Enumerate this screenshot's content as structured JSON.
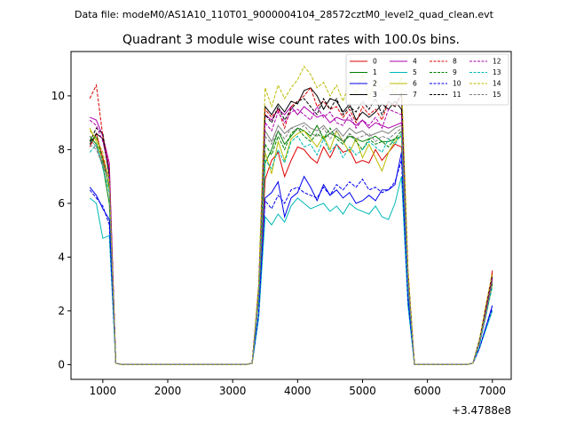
{
  "header": {
    "supertitle": "Data file: modeM0/AS1A10_110T01_9000004104_28572cztM0_level2_quad_clean.evt",
    "title": "Quadrant 3 module wise count rates with 100.0s bins.",
    "offset_label": "+3.4788e8"
  },
  "chart_data": {
    "type": "line",
    "title": "Quadrant 3 module wise count rates with 100.0s bins.",
    "xlabel": "",
    "ylabel": "",
    "x_offset": 347880000,
    "xlim": [
      510,
      7290
    ],
    "ylim": [
      -0.55,
      11.65
    ],
    "xticks": [
      1000,
      2000,
      3000,
      4000,
      5000,
      6000,
      7000
    ],
    "yticks": [
      0,
      2,
      4,
      6,
      8,
      10
    ],
    "grid": false,
    "legend_position": "top-right",
    "x": [
      800,
      900,
      1000,
      1100,
      1200,
      1300,
      1400,
      1500,
      1600,
      1700,
      1800,
      1900,
      2000,
      2100,
      2200,
      2300,
      2400,
      2500,
      2600,
      2700,
      2800,
      2900,
      3000,
      3100,
      3200,
      3300,
      3400,
      3500,
      3600,
      3700,
      3800,
      3900,
      4000,
      4100,
      4200,
      4300,
      4400,
      4500,
      4600,
      4700,
      4800,
      4900,
      5000,
      5100,
      5200,
      5300,
      5400,
      5500,
      5600,
      5700,
      5800,
      5900,
      6000,
      6100,
      6200,
      6300,
      6400,
      6500,
      6600,
      6700,
      6800,
      6900,
      7000
    ],
    "series": [
      {
        "name": "0",
        "color": "#dd0000",
        "dash": "solid",
        "values": [
          8.1,
          8.6,
          7.7,
          6.9,
          0.05,
          0,
          0,
          0,
          0,
          0,
          0,
          0,
          0,
          0,
          0,
          0,
          0,
          0,
          0,
          0,
          0,
          0,
          0,
          0,
          0,
          0.05,
          2.4,
          6.9,
          7.6,
          7.9,
          7.0,
          7.6,
          8.1,
          8.0,
          7.7,
          7.5,
          8.1,
          7.7,
          8.2,
          7.9,
          8.0,
          7.5,
          7.6,
          7.5,
          8.0,
          7.6,
          7.9,
          8.2,
          8.1,
          3.0,
          0,
          0,
          0,
          0,
          0,
          0,
          0,
          0,
          0,
          0.05,
          0.8,
          1.8,
          3.5
        ]
      },
      {
        "name": "1",
        "color": "#008000",
        "dash": "solid",
        "values": [
          8.5,
          8.2,
          7.4,
          6.0,
          0.05,
          0,
          0,
          0,
          0,
          0,
          0,
          0,
          0,
          0,
          0,
          0,
          0,
          0,
          0,
          0,
          0,
          0,
          0,
          0,
          0,
          0.05,
          2.5,
          7.5,
          8.0,
          8.7,
          8.2,
          8.5,
          8.8,
          8.7,
          8.5,
          8.9,
          8.4,
          8.6,
          8.5,
          8.3,
          8.5,
          8.4,
          8.3,
          8.4,
          8.5,
          8.3,
          8.3,
          8.4,
          8.5,
          3.1,
          0,
          0,
          0,
          0,
          0,
          0,
          0,
          0,
          0,
          0.05,
          0.8,
          2.0,
          3.1
        ]
      },
      {
        "name": "2",
        "color": "#0000ee",
        "dash": "solid",
        "values": [
          6.6,
          6.3,
          5.8,
          5.4,
          0.05,
          0,
          0,
          0,
          0,
          0,
          0,
          0,
          0,
          0,
          0,
          0,
          0,
          0,
          0,
          0,
          0,
          0,
          0,
          0,
          0,
          0.05,
          1.8,
          6.2,
          6.4,
          6.8,
          5.5,
          6.2,
          6.4,
          7.0,
          6.6,
          6.1,
          6.7,
          6.3,
          6.5,
          6.2,
          6.4,
          6.0,
          6.1,
          6.3,
          6.1,
          6.5,
          6.5,
          6.7,
          7.9,
          2.5,
          0,
          0,
          0,
          0,
          0,
          0,
          0,
          0,
          0,
          0.05,
          0.6,
          1.4,
          2.2
        ]
      },
      {
        "name": "3",
        "color": "#000000",
        "dash": "solid",
        "values": [
          8.2,
          8.6,
          8.4,
          7.1,
          0.05,
          0,
          0,
          0,
          0,
          0,
          0,
          0,
          0,
          0,
          0,
          0,
          0,
          0,
          0,
          0,
          0,
          0,
          0,
          0,
          0,
          0.05,
          2.8,
          9.6,
          9.3,
          9.7,
          9.4,
          9.8,
          9.7,
          10.2,
          10.3,
          10.0,
          9.5,
          9.9,
          9.8,
          9.4,
          9.7,
          9.1,
          9.4,
          9.2,
          9.4,
          9.7,
          9.5,
          9.8,
          9.5,
          3.4,
          0,
          0,
          0,
          0,
          0,
          0,
          0,
          0,
          0,
          0.05,
          0.9,
          2.1,
          3.3
        ]
      },
      {
        "name": "4",
        "color": "#aa00aa",
        "dash": "solid",
        "values": [
          9.2,
          9.1,
          8.5,
          7.5,
          0.05,
          0,
          0,
          0,
          0,
          0,
          0,
          0,
          0,
          0,
          0,
          0,
          0,
          0,
          0,
          0,
          0,
          0,
          0,
          0,
          0,
          0.05,
          2.8,
          9.3,
          9.1,
          9.5,
          9.3,
          9.6,
          9.3,
          9.6,
          9.4,
          9.2,
          9.3,
          9.0,
          9.2,
          9.1,
          9.1,
          8.9,
          9.1,
          8.8,
          9.0,
          8.9,
          8.8,
          8.9,
          9.0,
          3.3,
          0,
          0,
          0,
          0,
          0,
          0,
          0,
          0,
          0,
          0.05,
          0.8,
          2.0,
          3.2
        ]
      },
      {
        "name": "5",
        "color": "#00b8b8",
        "dash": "solid",
        "values": [
          6.2,
          6.0,
          4.7,
          4.8,
          0.05,
          0,
          0,
          0,
          0,
          0,
          0,
          0,
          0,
          0,
          0,
          0,
          0,
          0,
          0,
          0,
          0,
          0,
          0,
          0,
          0,
          0.05,
          1.7,
          5.5,
          5.2,
          5.6,
          5.3,
          5.9,
          6.2,
          6.0,
          5.8,
          5.9,
          6.0,
          5.7,
          5.9,
          5.6,
          6.0,
          5.8,
          5.7,
          5.6,
          5.9,
          5.5,
          5.4,
          6.0,
          7.0,
          2.2,
          0,
          0,
          0,
          0,
          0,
          0,
          0,
          0,
          0,
          0.05,
          0.6,
          1.3,
          2.0
        ]
      },
      {
        "name": "6",
        "color": "#bbbb00",
        "dash": "solid",
        "values": [
          8.8,
          8.3,
          7.6,
          6.5,
          0.05,
          0,
          0,
          0,
          0,
          0,
          0,
          0,
          0,
          0,
          0,
          0,
          0,
          0,
          0,
          0,
          0,
          0,
          0,
          0,
          0,
          0.05,
          2.5,
          7.9,
          7.1,
          8.3,
          7.6,
          8.4,
          8.6,
          8.7,
          8.4,
          8.1,
          8.5,
          8.0,
          8.7,
          8.3,
          7.9,
          8.4,
          7.7,
          8.2,
          7.7,
          7.2,
          7.9,
          8.3,
          8.5,
          3.0,
          0,
          0,
          0,
          0,
          0,
          0,
          0,
          0,
          0,
          0.05,
          0.8,
          1.8,
          3.0
        ]
      },
      {
        "name": "7",
        "color": "#808080",
        "dash": "solid",
        "values": [
          8.4,
          8.1,
          7.5,
          6.9,
          0.05,
          0,
          0,
          0,
          0,
          0,
          0,
          0,
          0,
          0,
          0,
          0,
          0,
          0,
          0,
          0,
          0,
          0,
          0,
          0,
          0,
          0.05,
          2.6,
          8.7,
          8.3,
          8.9,
          8.6,
          8.8,
          8.9,
          9.0,
          8.8,
          8.7,
          8.9,
          8.6,
          8.8,
          8.5,
          8.8,
          8.6,
          8.7,
          8.5,
          8.6,
          8.7,
          8.6,
          8.8,
          8.9,
          3.2,
          0,
          0,
          0,
          0,
          0,
          0,
          0,
          0,
          0,
          0.05,
          0.8,
          1.9,
          3.1
        ]
      },
      {
        "name": "8",
        "color": "#dd0000",
        "dash": "dashed",
        "values": [
          9.9,
          10.4,
          8.5,
          7.3,
          0.05,
          0,
          0,
          0,
          0,
          0,
          0,
          0,
          0,
          0,
          0,
          0,
          0,
          0,
          0,
          0,
          0,
          0,
          0,
          0,
          0,
          0.05,
          2.9,
          9.5,
          9.2,
          9.5,
          8.8,
          9.6,
          9.8,
          10.0,
          10.3,
          9.6,
          9.8,
          9.5,
          9.6,
          9.2,
          9.5,
          9.0,
          9.6,
          9.3,
          9.5,
          9.1,
          9.8,
          9.6,
          10.0,
          3.5,
          0,
          0,
          0,
          0,
          0,
          0,
          0,
          0,
          0,
          0.05,
          0.9,
          2.2,
          3.4
        ]
      },
      {
        "name": "9",
        "color": "#008000",
        "dash": "dashed",
        "values": [
          8.3,
          8.5,
          7.6,
          6.6,
          0.05,
          0,
          0,
          0,
          0,
          0,
          0,
          0,
          0,
          0,
          0,
          0,
          0,
          0,
          0,
          0,
          0,
          0,
          0,
          0,
          0,
          0.05,
          2.5,
          8.2,
          7.8,
          8.5,
          8.0,
          8.6,
          8.8,
          8.5,
          8.3,
          8.6,
          8.4,
          8.8,
          8.4,
          8.2,
          8.6,
          8.3,
          8.0,
          8.4,
          8.2,
          8.3,
          8.1,
          8.4,
          8.7,
          3.0,
          0,
          0,
          0,
          0,
          0,
          0,
          0,
          0,
          0,
          0.05,
          0.8,
          1.9,
          3.0
        ]
      },
      {
        "name": "10",
        "color": "#0000ee",
        "dash": "dashed",
        "values": [
          6.5,
          6.2,
          5.9,
          5.2,
          0.05,
          0,
          0,
          0,
          0,
          0,
          0,
          0,
          0,
          0,
          0,
          0,
          0,
          0,
          0,
          0,
          0,
          0,
          0,
          0,
          0,
          0.05,
          1.9,
          6.1,
          5.8,
          6.3,
          6.0,
          6.5,
          6.6,
          6.4,
          6.3,
          6.2,
          6.6,
          6.3,
          6.7,
          6.5,
          6.8,
          6.6,
          6.9,
          6.5,
          6.6,
          6.4,
          6.5,
          6.8,
          7.6,
          2.4,
          0,
          0,
          0,
          0,
          0,
          0,
          0,
          0,
          0,
          0.05,
          0.6,
          1.4,
          2.1
        ]
      },
      {
        "name": "11",
        "color": "#000000",
        "dash": "dashed",
        "values": [
          8.3,
          8.8,
          8.6,
          7.0,
          0.05,
          0,
          0,
          0,
          0,
          0,
          0,
          0,
          0,
          0,
          0,
          0,
          0,
          0,
          0,
          0,
          0,
          0,
          0,
          0,
          0,
          0.05,
          2.8,
          9.3,
          9.0,
          9.6,
          9.1,
          9.5,
          9.8,
          9.9,
          9.6,
          9.3,
          9.9,
          9.5,
          9.9,
          9.3,
          9.6,
          9.4,
          9.8,
          9.5,
          9.9,
          9.3,
          9.8,
          9.6,
          10.1,
          3.4,
          0,
          0,
          0,
          0,
          0,
          0,
          0,
          0,
          0,
          0.05,
          0.9,
          2.1,
          3.3
        ]
      },
      {
        "name": "12",
        "color": "#aa00aa",
        "dash": "dashed",
        "values": [
          9.1,
          8.9,
          8.3,
          7.3,
          0.05,
          0,
          0,
          0,
          0,
          0,
          0,
          0,
          0,
          0,
          0,
          0,
          0,
          0,
          0,
          0,
          0,
          0,
          0,
          0,
          0,
          0.05,
          2.8,
          9.0,
          8.7,
          9.4,
          9.0,
          9.4,
          9.5,
          9.3,
          9.1,
          9.6,
          9.2,
          9.4,
          9.0,
          8.9,
          9.3,
          8.8,
          9.1,
          8.9,
          9.2,
          8.8,
          9.5,
          9.4,
          9.3,
          3.3,
          0,
          0,
          0,
          0,
          0,
          0,
          0,
          0,
          0,
          0.05,
          0.8,
          2.0,
          3.2
        ]
      },
      {
        "name": "13",
        "color": "#00b8b8",
        "dash": "dashed",
        "values": [
          7.9,
          8.2,
          7.3,
          6.4,
          0.05,
          0,
          0,
          0,
          0,
          0,
          0,
          0,
          0,
          0,
          0,
          0,
          0,
          0,
          0,
          0,
          0,
          0,
          0,
          0,
          0,
          0.05,
          2.4,
          7.6,
          7.3,
          8.0,
          7.5,
          8.3,
          8.5,
          8.1,
          8.2,
          7.8,
          8.4,
          7.9,
          8.2,
          7.7,
          8.1,
          7.8,
          8.0,
          8.3,
          8.1,
          7.9,
          8.4,
          8.2,
          8.6,
          2.9,
          0,
          0,
          0,
          0,
          0,
          0,
          0,
          0,
          0,
          0.05,
          0.7,
          1.8,
          2.9
        ]
      },
      {
        "name": "14",
        "color": "#bbbb00",
        "dash": "dashed",
        "values": [
          8.7,
          8.4,
          7.9,
          6.8,
          0.05,
          0,
          0,
          0,
          0,
          0,
          0,
          0,
          0,
          0,
          0,
          0,
          0,
          0,
          0,
          0,
          0,
          0,
          0,
          0,
          0,
          0.05,
          3.0,
          10.3,
          9.6,
          10.4,
          9.9,
          10.3,
          10.6,
          11.1,
          10.8,
          10.3,
          10.5,
          10.0,
          10.4,
          9.8,
          10.5,
          10.1,
          10.8,
          9.9,
          10.6,
          10.2,
          10.4,
          10.1,
          10.7,
          3.6,
          0,
          0,
          0,
          0,
          0,
          0,
          0,
          0,
          0,
          0.05,
          0.9,
          2.2,
          3.4
        ]
      },
      {
        "name": "15",
        "color": "#808080",
        "dash": "dashed",
        "values": [
          8.2,
          8.0,
          7.4,
          6.7,
          0.05,
          0,
          0,
          0,
          0,
          0,
          0,
          0,
          0,
          0,
          0,
          0,
          0,
          0,
          0,
          0,
          0,
          0,
          0,
          0,
          0,
          0.05,
          2.6,
          8.5,
          8.2,
          8.7,
          8.4,
          8.8,
          8.7,
          8.9,
          8.6,
          8.5,
          8.8,
          8.4,
          8.7,
          8.3,
          8.6,
          8.4,
          8.5,
          8.6,
          8.3,
          8.5,
          8.4,
          8.6,
          8.8,
          3.1,
          0,
          0,
          0,
          0,
          0,
          0,
          0,
          0,
          0,
          0.05,
          0.8,
          1.9,
          3.1
        ]
      }
    ]
  }
}
